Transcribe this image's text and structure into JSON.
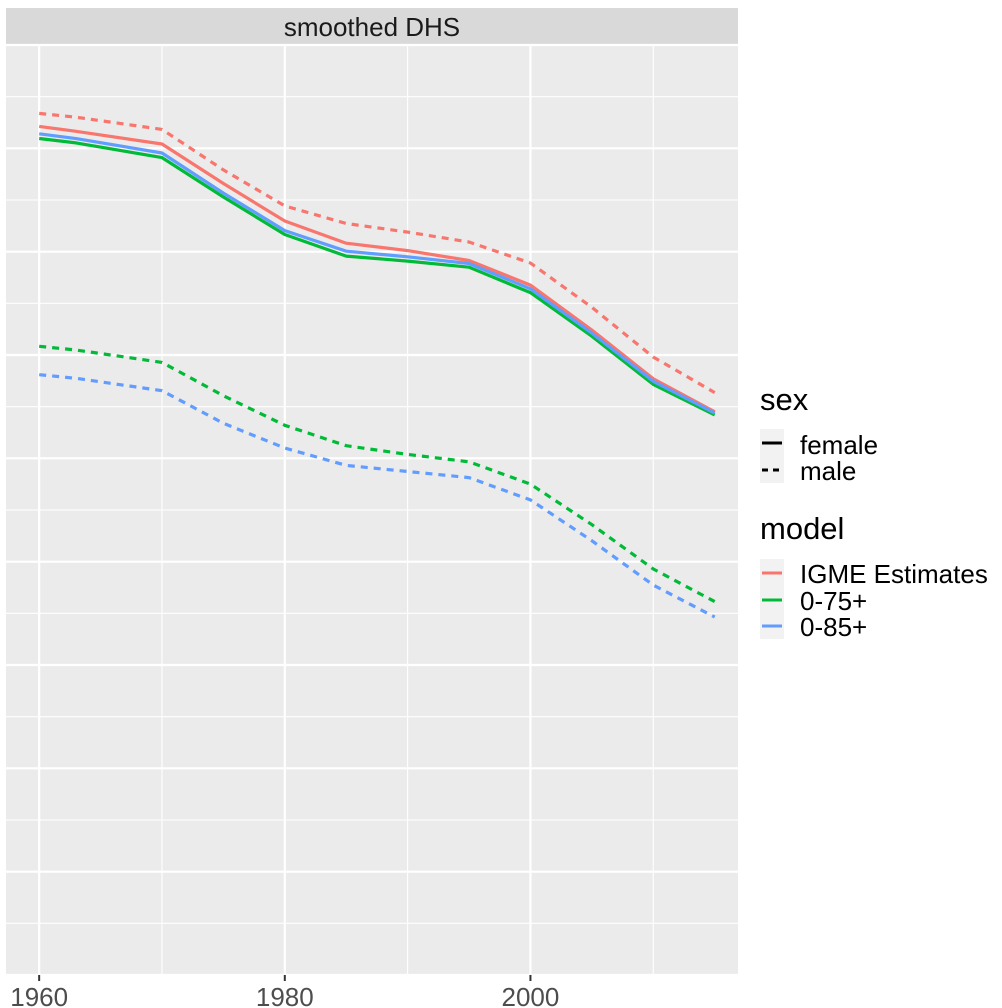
{
  "chart_data": {
    "type": "line",
    "panel_title": "smoothed DHS",
    "xlabel": "",
    "ylabel": "",
    "xlim": [
      1957.3,
      2016.9
    ],
    "ylim": [
      0,
      1
    ],
    "x_major_breaks": [
      1960,
      1980,
      2000
    ],
    "x_minor_breaks": [
      1970,
      1990,
      2010
    ],
    "grid": true,
    "legend_position": "right",
    "x": [
      1960,
      1963,
      1970,
      1975,
      1980,
      1985,
      1990,
      1995,
      2000,
      2005,
      2010,
      2015
    ],
    "series": [
      {
        "model": "IGME Estimates",
        "sex": "female",
        "color": "#F8766D",
        "linetype": "solid",
        "values": [
          0.9125,
          0.9072,
          0.8935,
          0.8511,
          0.8108,
          0.7869,
          0.7789,
          0.7683,
          0.7418,
          0.6935,
          0.6411,
          0.6056
        ]
      },
      {
        "model": "0-75+",
        "sex": "female",
        "color": "#00BA38",
        "linetype": "solid",
        "values": [
          0.8995,
          0.8947,
          0.8789,
          0.8366,
          0.7962,
          0.773,
          0.7676,
          0.7611,
          0.7338,
          0.6869,
          0.6351,
          0.6022
        ]
      },
      {
        "model": "0-85+",
        "sex": "female",
        "color": "#619CFF",
        "linetype": "dashed_off",
        "values": [
          0.9045,
          0.8994,
          0.8839,
          0.8408,
          0.8004,
          0.7783,
          0.7723,
          0.765,
          0.7378,
          0.6902,
          0.6384,
          0.6042
        ]
      },
      {
        "model": "IGME Estimates",
        "sex": "male",
        "color": "#F8766D",
        "linetype": "dashed",
        "values": [
          0.9264,
          0.9224,
          0.9092,
          0.8657,
          0.827,
          0.8081,
          0.7988,
          0.7882,
          0.7656,
          0.718,
          0.6644,
          0.6262
        ]
      },
      {
        "model": "0-75+",
        "sex": "male",
        "color": "#00BA38",
        "linetype": "dashed",
        "values": [
          0.676,
          0.672,
          0.6587,
          0.6229,
          0.5911,
          0.5691,
          0.5598,
          0.5518,
          0.5279,
          0.4843,
          0.4366,
          0.4015
        ]
      },
      {
        "model": "0-85+",
        "sex": "male",
        "color": "#619CFF",
        "linetype": "dashed",
        "values": [
          0.6455,
          0.6416,
          0.6283,
          0.5932,
          0.5667,
          0.548,
          0.5414,
          0.5348,
          0.5109,
          0.467,
          0.4193,
          0.385
        ]
      }
    ],
    "legend": {
      "sex": {
        "title": "sex",
        "items": [
          {
            "label": "female",
            "linetype": "solid"
          },
          {
            "label": "male",
            "linetype": "dashed"
          }
        ]
      },
      "model": {
        "title": "model",
        "items": [
          {
            "label": "IGME Estimates",
            "color": "#F8766D"
          },
          {
            "label": "0-75+",
            "color": "#00BA38"
          },
          {
            "label": "0-85+",
            "color": "#619CFF"
          }
        ]
      }
    }
  },
  "colors": {
    "panel_bg": "#EBEBEB",
    "strip_bg": "#D9D9D9",
    "grid": "#FFFFFF"
  }
}
